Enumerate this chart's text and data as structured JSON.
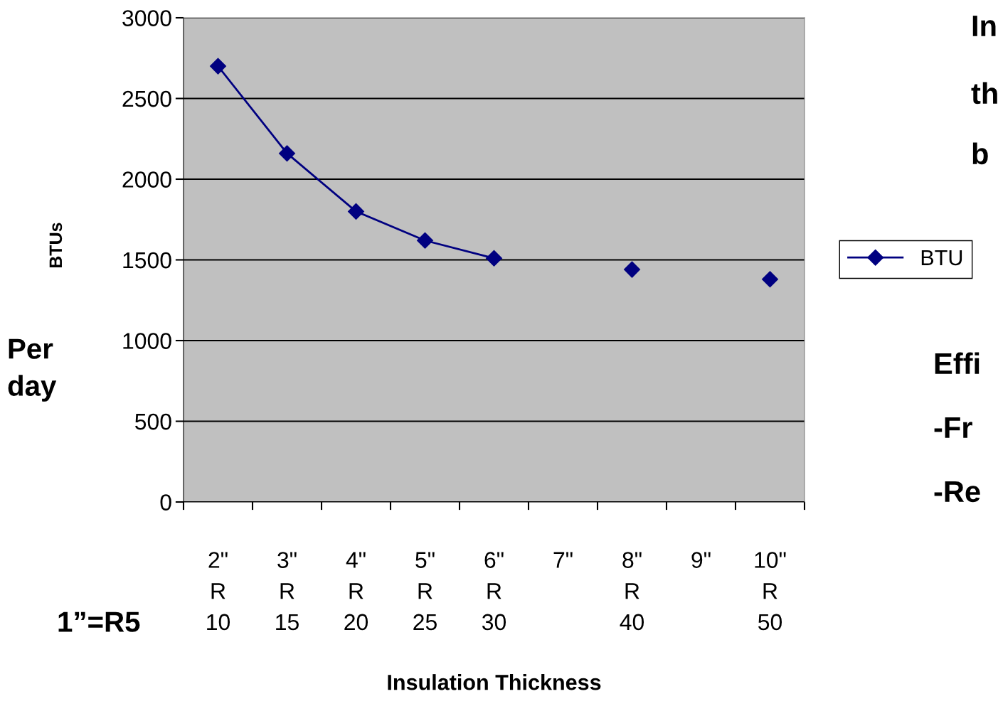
{
  "chart_data": {
    "type": "line",
    "ylabel": "BTUs",
    "xlabel": "Insulation Thickness",
    "categories": [
      "2\"\nR\n10",
      "3\"\nR\n15",
      "4\"\nR\n20",
      "5\"\nR\n25",
      "6\"\nR\n30",
      "7\"",
      "8\"\nR\n40",
      "9\"",
      "10\"\nR\n50"
    ],
    "series": [
      {
        "name": "BTU",
        "color": "#000080",
        "values": [
          2700,
          2160,
          1800,
          1620,
          1510,
          null,
          1440,
          null,
          1380
        ]
      }
    ],
    "ylim": [
      0,
      3000
    ],
    "yticks": [
      0,
      500,
      1000,
      1500,
      2000,
      2500,
      3000
    ],
    "grid": "y",
    "legend": "right",
    "marker": "diamond",
    "line_style": "solid",
    "annotations": [
      "Per\nday",
      "1”=R5",
      "In",
      "th",
      "b",
      "Effi",
      "-Fr",
      "-Re"
    ]
  }
}
